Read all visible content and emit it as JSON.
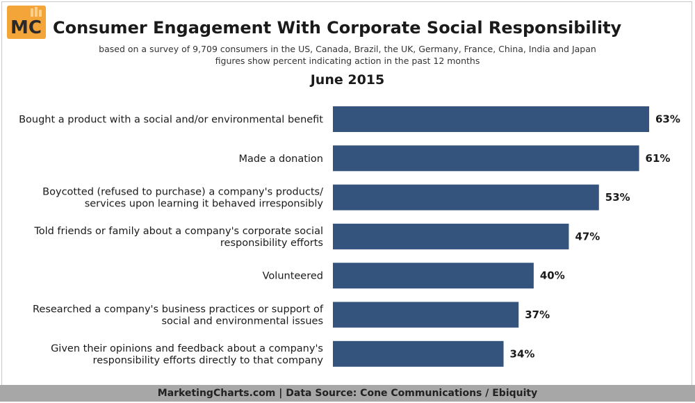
{
  "brand": {
    "logo_text": "MC",
    "logo_color": "#f3a53a"
  },
  "header": {
    "title": "Consumer Engagement With Corporate Social Responsibility",
    "subtitle_line1": "based on a survey of 9,709 consumers in the US, Canada, Brazil, the UK, Germany, France, China, India and Japan",
    "subtitle_line2": "figures show percent indicating action in the past 12 months",
    "period": "June 2015"
  },
  "footer": {
    "text": "MarketingCharts.com | Data Source: Cone Communications / Ebiquity"
  },
  "chart_data": {
    "type": "bar",
    "orientation": "horizontal",
    "bar_color": "#34547e",
    "categories": [
      [
        "Bought a product with a social and/or environmental benefit"
      ],
      [
        "Made a donation"
      ],
      [
        "Boycotted (refused to purchase) a company's products/",
        "services upon learning it behaved irresponsibly"
      ],
      [
        "Told friends or family about a company's corporate social",
        "responsibility efforts"
      ],
      [
        "Volunteered"
      ],
      [
        "Researched a company's business practices or support of",
        "social and environmental issues"
      ],
      [
        "Given their opinions and feedback about a company's",
        "responsibility efforts directly to that company"
      ]
    ],
    "values": [
      63,
      61,
      53,
      47,
      40,
      37,
      34
    ],
    "value_labels": [
      "63%",
      "61%",
      "53%",
      "47%",
      "40%",
      "37%",
      "34%"
    ],
    "xlim": [
      0,
      63
    ],
    "grid": false,
    "legend": "none"
  }
}
